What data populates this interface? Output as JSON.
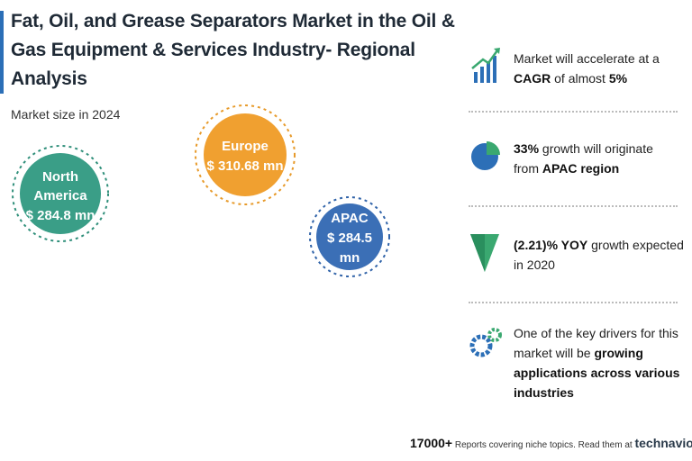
{
  "header": {
    "title_lines": [
      "Fat, Oil, and Grease Separators Market in the Oil &",
      "Gas Equipment & Services Industry- Regional",
      "Analysis"
    ],
    "subtitle": "Market size in 2024"
  },
  "regions": [
    {
      "name_lines": [
        "North",
        "America"
      ],
      "value": "$ 284.8 mn"
    },
    {
      "name_lines": [
        "Europe"
      ],
      "value": "$ 310.68 mn"
    },
    {
      "name_lines": [
        "APAC"
      ],
      "value_lines": [
        "$ 284.5",
        "mn"
      ]
    }
  ],
  "stats": [
    {
      "segments": [
        "Market will accelerate at a",
        "CAGR",
        " of almost ",
        "5%"
      ]
    },
    {
      "segments": [
        "33%",
        " growth will originate",
        "from ",
        "APAC region"
      ]
    },
    {
      "segments": [
        "(2.21)% YOY",
        " growth expected",
        "in 2020"
      ]
    },
    {
      "segments": [
        "One of the key drivers for this",
        "market will be ",
        "growing",
        "applications across various",
        "industries"
      ]
    }
  ],
  "footer": {
    "count": "17000+",
    "text": "Reports covering niche topics. Read them at",
    "brand": "technavio"
  }
}
